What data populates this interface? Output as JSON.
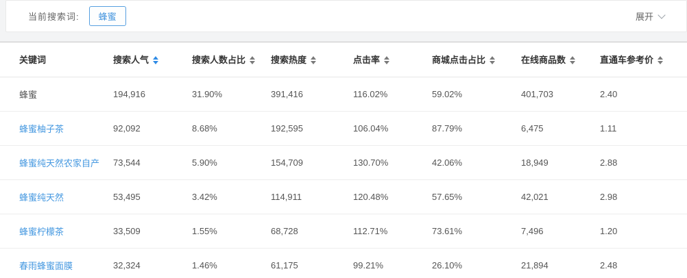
{
  "filter_bar": {
    "label": "当前搜索词:",
    "search_tag": "蜂蜜",
    "expand_label": "展开"
  },
  "table": {
    "columns": [
      {
        "label": "关键词",
        "sortable": false,
        "sort_active": false
      },
      {
        "label": "搜索人气",
        "sortable": true,
        "sort_active": true
      },
      {
        "label": "搜索人数占比",
        "sortable": true,
        "sort_active": false
      },
      {
        "label": "搜索热度",
        "sortable": true,
        "sort_active": false
      },
      {
        "label": "点击率",
        "sortable": true,
        "sort_active": false
      },
      {
        "label": "商城点击占比",
        "sortable": true,
        "sort_active": false
      },
      {
        "label": "在线商品数",
        "sortable": true,
        "sort_active": false
      },
      {
        "label": "直通车参考价",
        "sortable": true,
        "sort_active": false
      }
    ],
    "rows": [
      {
        "keyword": "蜂蜜",
        "link": false,
        "values": [
          "194,916",
          "31.90%",
          "391,416",
          "116.02%",
          "59.02%",
          "401,703",
          "2.40"
        ]
      },
      {
        "keyword": "蜂蜜柚子茶",
        "link": true,
        "values": [
          "92,092",
          "8.68%",
          "192,595",
          "106.04%",
          "87.79%",
          "6,475",
          "1.11"
        ]
      },
      {
        "keyword": "蜂蜜纯天然农家自产",
        "link": true,
        "values": [
          "73,544",
          "5.90%",
          "154,709",
          "130.70%",
          "42.06%",
          "18,949",
          "2.88"
        ]
      },
      {
        "keyword": "蜂蜜纯天然",
        "link": true,
        "values": [
          "53,495",
          "3.42%",
          "114,911",
          "120.48%",
          "57.65%",
          "42,021",
          "2.98"
        ]
      },
      {
        "keyword": "蜂蜜柠檬茶",
        "link": true,
        "values": [
          "33,509",
          "1.55%",
          "68,728",
          "112.71%",
          "73.61%",
          "7,496",
          "1.20"
        ]
      },
      {
        "keyword": "春雨蜂蜜面膜",
        "link": true,
        "values": [
          "32,324",
          "1.46%",
          "61,175",
          "99.21%",
          "26.10%",
          "21,894",
          "2.48"
        ]
      }
    ]
  },
  "colors": {
    "accent_blue": "#4193dd",
    "link_blue": "#4598e0",
    "sort_active_blue": "#2f8be6",
    "header_text": "#333333",
    "body_text": "#555555"
  }
}
